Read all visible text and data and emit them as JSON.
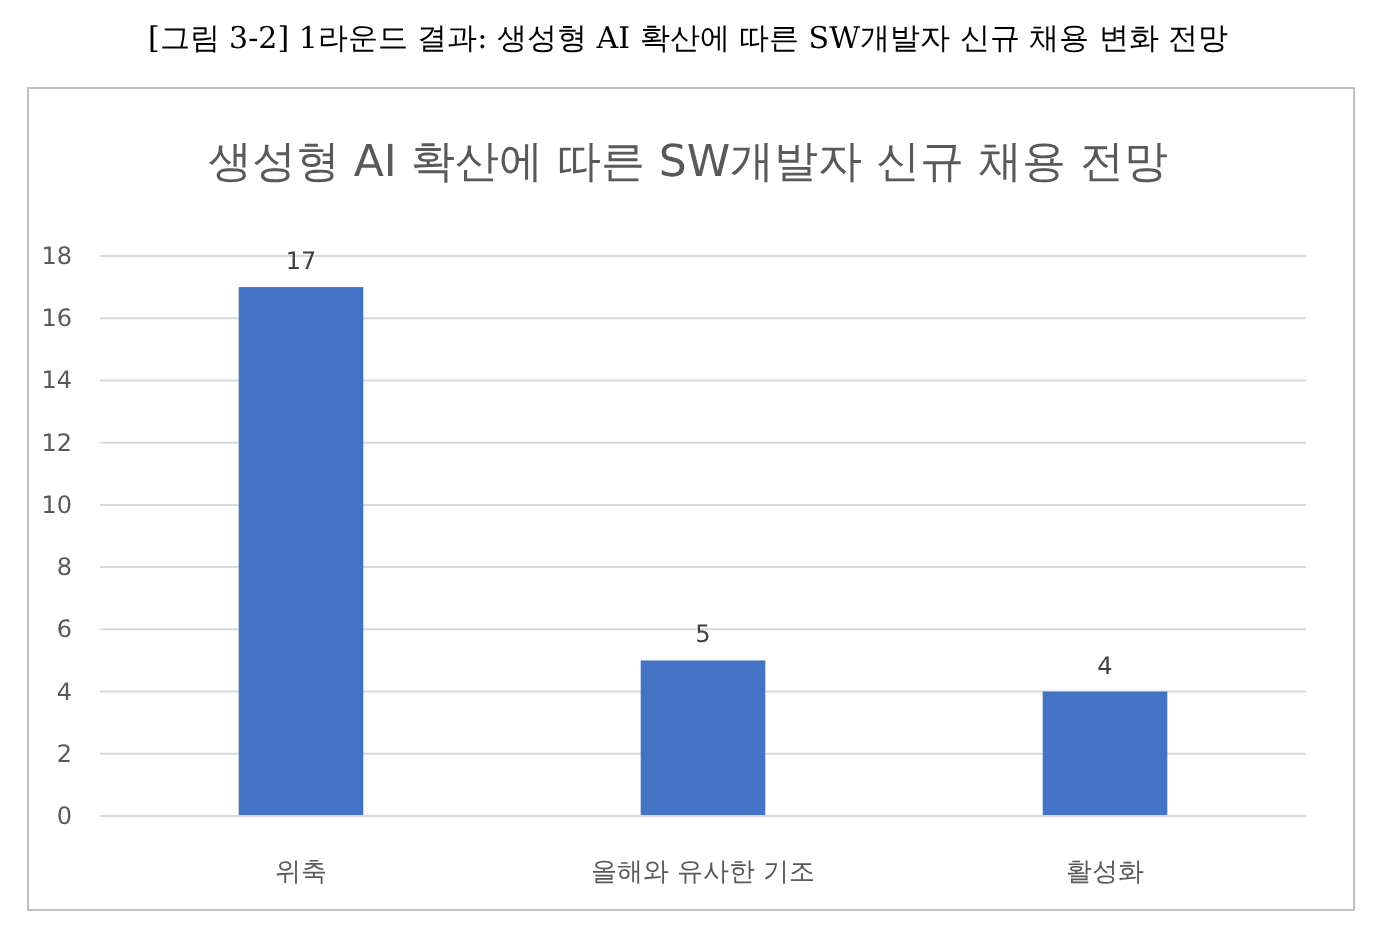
{
  "chart_data": {
    "type": "bar",
    "title": "생성형 AI 확산에 따른 SW개발자 신규 채용 전망",
    "annotations": [
      "[그림 3-2] 1라운드 결과: 생성형 AI 확산에 따른 SW개발자 신규 채용 변화 전망"
    ],
    "categories": [
      "위축",
      "올해와 유사한 기조",
      "활성화"
    ],
    "values": [
      17,
      5,
      4
    ],
    "color": "#4472c4",
    "ylim": [
      0,
      18
    ],
    "yticks": [
      0,
      2,
      4,
      6,
      8,
      10,
      12,
      14,
      16,
      18
    ],
    "grid": "y",
    "data_labels": true
  }
}
